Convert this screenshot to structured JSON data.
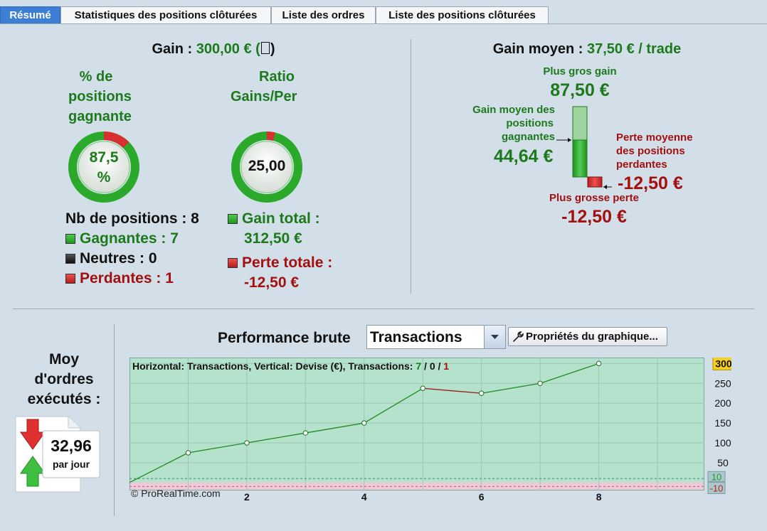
{
  "tabs": [
    {
      "label": "Résumé",
      "active": true
    },
    {
      "label": "Statistiques des positions clôturées",
      "active": false
    },
    {
      "label": "Liste des ordres",
      "active": false
    },
    {
      "label": "Liste des positions clôturées",
      "active": false
    }
  ],
  "gain": {
    "label": "Gain : ",
    "value": "300,00 € (",
    "tail": ")"
  },
  "win_pct": {
    "title_l1": "% de",
    "title_l2": "positions",
    "title_l3": "gagnante",
    "value_l1": "87,5",
    "value_l2": "%",
    "fraction": 0.875
  },
  "ratio": {
    "title_l1": "Ratio",
    "title_l2": "Gains/Per",
    "value": "25,00",
    "fraction": 0.962
  },
  "positions": {
    "count_label": "Nb de positions : 8",
    "winners": "Gagnantes : 7",
    "neutral": "Neutres : 0",
    "losers": "Perdantes : 1"
  },
  "totals": {
    "gain_l1": "Gain total :",
    "gain_l2": "312,50 €",
    "loss_l1": "Perte totale :",
    "loss_l2": "-12,50 €"
  },
  "avg": {
    "label": "Gain moyen : ",
    "value": "37,50 € / trade",
    "max_gain_label": "Plus gros gain",
    "max_gain_value": "87,50 €",
    "avg_win_l1": "Gain moyen des",
    "avg_win_l2": "positions",
    "avg_win_l3": "gagnantes",
    "avg_win_value": "44,64 €",
    "avg_loss_l1": "Perte moyenne",
    "avg_loss_l2": "des positions",
    "avg_loss_l3": "perdantes",
    "avg_loss_value": "-12,50 €",
    "max_loss_label": "Plus grosse perte",
    "max_loss_value": "-12,50 €"
  },
  "orders": {
    "title_l1": "Moy",
    "title_l2": "d'ordres",
    "title_l3": "exécutés :",
    "value": "32,96",
    "unit": "par jour"
  },
  "perf": {
    "title": "Performance brute",
    "select_value": "Transactions",
    "props_button": "Propriétés du graphique..."
  },
  "chart_data": {
    "type": "line",
    "info_prefix": "Horizontal: Transactions, Vertical: Devise (€), Transactions: ",
    "info_win": "7",
    "info_sep1": " / ",
    "info_neutral": "0",
    "info_sep2": " / ",
    "info_loss": "1",
    "copyright": "© ProRealTime.com",
    "x": [
      0,
      1,
      2,
      3,
      4,
      5,
      6,
      7,
      8
    ],
    "y": [
      0,
      75,
      100,
      125,
      150,
      237.5,
      225,
      250,
      300
    ],
    "x_ticks": [
      "2",
      "4",
      "6",
      "8"
    ],
    "x_tick_values": [
      2,
      4,
      6,
      8
    ],
    "y_ticks": [
      "250",
      "200",
      "150",
      "100",
      "50"
    ],
    "y_tick_values": [
      250,
      200,
      150,
      100,
      50
    ],
    "y_last": "300",
    "y_pos_marker": "10",
    "y_neg_marker": "-10",
    "xlim": [
      0,
      9.8
    ],
    "ylim": [
      -20,
      315
    ],
    "colors": {
      "up": "#1f8a1f",
      "down": "#9c1a1a",
      "bg": "#b5e2cc",
      "neg_bg": "#f0c8d8"
    }
  }
}
